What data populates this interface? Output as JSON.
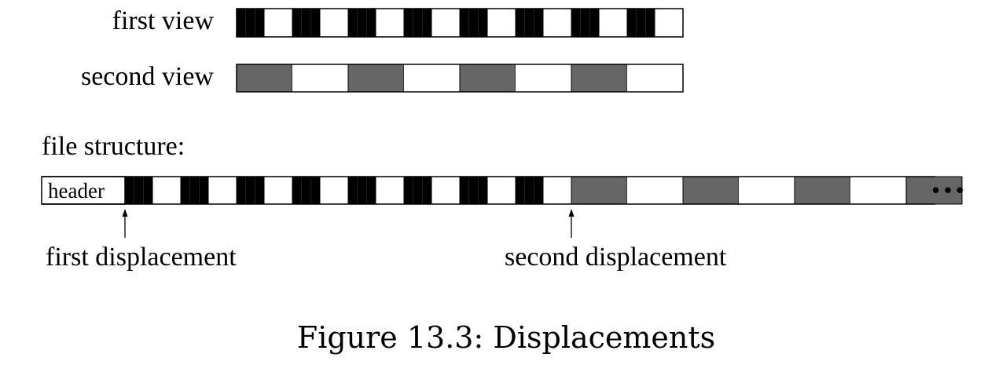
{
  "labels": {
    "first_view": "first view",
    "second_view": "second view",
    "file_structure": "file structure:",
    "header": "header",
    "first_displacement": "first displacement",
    "second_displacement": "second displacement",
    "ellipsis": "•••"
  },
  "caption": "Figure 13.3: Displacements",
  "colors": {
    "first_view_fill": "#000000",
    "second_view_fill": "#666666",
    "empty_fill": "#ffffff",
    "stroke": "#000000"
  },
  "first_view_pattern": [
    1,
    0,
    1,
    0,
    1,
    0,
    1,
    0,
    1,
    0,
    1,
    0,
    1,
    0,
    1,
    0
  ],
  "second_view_pattern": [
    1,
    0,
    1,
    0,
    1,
    0,
    1,
    0
  ],
  "file_first_pattern": [
    1,
    0,
    1,
    0,
    1,
    0,
    1,
    0,
    1,
    0,
    1,
    0,
    1,
    0,
    1,
    0
  ],
  "file_second_pattern": [
    1,
    0,
    1,
    0,
    1,
    0,
    1
  ]
}
